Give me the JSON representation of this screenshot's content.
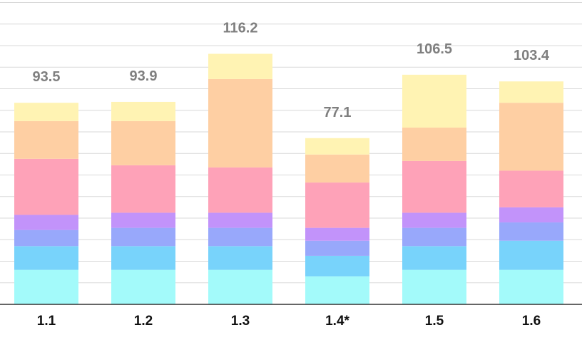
{
  "chart_data": {
    "type": "bar",
    "stacked": true,
    "categories": [
      "1.1",
      "1.2",
      "1.3",
      "1.4*",
      "1.5",
      "1.6"
    ],
    "totals": [
      93.5,
      93.9,
      116.2,
      77.1,
      106.5,
      103.4
    ],
    "series": [
      {
        "color": "#a3fafa",
        "values": [
          16.0,
          16.0,
          16.0,
          13.0,
          16.0,
          16.0
        ]
      },
      {
        "color": "#78d3fb",
        "values": [
          11.0,
          11.0,
          11.0,
          9.5,
          11.0,
          13.5
        ]
      },
      {
        "color": "#98a8fb",
        "values": [
          7.5,
          8.5,
          8.5,
          7.0,
          8.5,
          8.5
        ]
      },
      {
        "color": "#c293fa",
        "values": [
          7.0,
          7.0,
          7.0,
          6.0,
          7.0,
          7.0
        ]
      },
      {
        "color": "#fea2b8",
        "values": [
          26.0,
          22.0,
          21.0,
          21.0,
          24.0,
          17.0
        ]
      },
      {
        "color": "#fecfa3",
        "values": [
          17.5,
          20.5,
          41.0,
          13.0,
          15.5,
          31.5
        ]
      },
      {
        "color": "#fff3b3",
        "values": [
          8.5,
          8.9,
          11.7,
          7.6,
          24.5,
          9.9
        ]
      }
    ],
    "ylim": [
      0,
      140
    ],
    "grid": true,
    "colors": {
      "grid": "#d9d9d9",
      "axis": "#333333",
      "total_label": "#7f7f7f",
      "tick_label": "#111111"
    }
  }
}
